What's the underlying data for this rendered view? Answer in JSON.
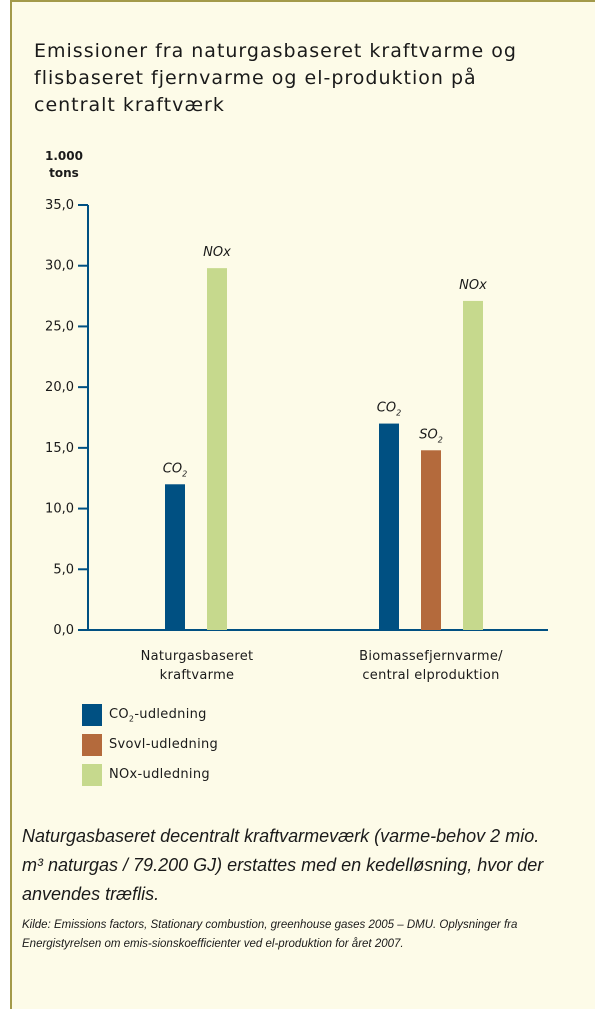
{
  "title": "Emissioner fra naturgasbaseret kraftvarme og flisbaseret fjernvarme og el-produktion på centralt kraftværk",
  "unit_lines": [
    "1.000",
    "tons"
  ],
  "legend": [
    {
      "label": "CO",
      "sub": "2",
      "rest": "-udledning",
      "color": "#005082"
    },
    {
      "label": "Svovl-udledning",
      "sub": "",
      "rest": "",
      "color": "#b46a3c"
    },
    {
      "label": "NOx-udledning",
      "sub": "",
      "rest": "",
      "color": "#c6d98d"
    }
  ],
  "caption": "Naturgasbaseret decentralt kraftvarmeværk (varme-behov 2 mio. m³ naturgas / 79.200 GJ) erstattes med en kedelløsning, hvor der anvendes træflis.",
  "source": "Kilde: Emissions factors, Stationary combustion, greenhouse gases 2005 – DMU. Oplysninger fra Energistyrelsen om emis-sionskoefficienter ved el-produktion for året 2007.",
  "chart_data": {
    "type": "bar",
    "ylim": [
      0,
      35
    ],
    "yticks": [
      "0,0",
      "5,0",
      "10,0",
      "15,0",
      "20,0",
      "25,0",
      "30,0",
      "35,0"
    ],
    "categories": [
      [
        "Naturgasbaseret",
        "kraftvarme"
      ],
      [
        "Biomassefjernvarme/",
        "central elproduktion"
      ]
    ],
    "bars": [
      {
        "category": 0,
        "series": "CO2",
        "value": 12.0,
        "label": "CO",
        "sub": "2",
        "color": "#005082"
      },
      {
        "category": 0,
        "series": "NOx",
        "value": 29.8,
        "label": "NOx",
        "sub": "",
        "color": "#c6d98d"
      },
      {
        "category": 1,
        "series": "CO2",
        "value": 17.0,
        "label": "CO",
        "sub": "2",
        "color": "#005082"
      },
      {
        "category": 1,
        "series": "SO2",
        "value": 14.8,
        "label": "SO",
        "sub": "2",
        "color": "#b46a3c"
      },
      {
        "category": 1,
        "series": "NOx",
        "value": 27.1,
        "label": "NOx",
        "sub": "",
        "color": "#c6d98d"
      }
    ]
  }
}
